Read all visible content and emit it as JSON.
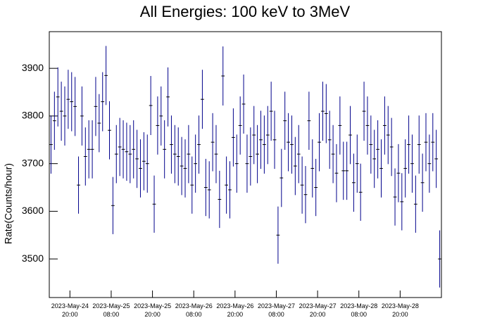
{
  "chart_data": {
    "type": "errorbar",
    "title": "All Energies:  100 keV to 3MeV",
    "y_label": "Rate(Counts/hour)",
    "xlim": [
      "2023-05-24T14:00",
      "2023-05-29T08:00"
    ],
    "xticks": [
      {
        "value": "2023-05-24T20:00",
        "label": "2023-May-24\n20:00"
      },
      {
        "value": "2023-05-25T08:00",
        "label": "2023-May-25\n08:00"
      },
      {
        "value": "2023-05-25T20:00",
        "label": "2023-May-25\n20:00"
      },
      {
        "value": "2023-05-26T08:00",
        "label": "2023-May-26\n08:00"
      },
      {
        "value": "2023-05-26T20:00",
        "label": "2023-May-26\n20:00"
      },
      {
        "value": "2023-05-27T08:00",
        "label": "2023-May-27\n08:00"
      },
      {
        "value": "2023-05-27T20:00",
        "label": "2023-May-27\n20:00"
      },
      {
        "value": "2023-05-28T08:00",
        "label": "2023-May-28\n08:00"
      },
      {
        "value": "2023-05-28T20:00",
        "label": "2023-May-28\n20:00"
      }
    ],
    "ylim": [
      3419,
      3977
    ],
    "yticks": [
      3500,
      3600,
      3700,
      3800,
      3900
    ],
    "x": [
      "2023-05-24T14:30",
      "2023-05-24T15:30",
      "2023-05-24T16:30",
      "2023-05-24T17:30",
      "2023-05-24T18:30",
      "2023-05-24T19:30",
      "2023-05-24T20:30",
      "2023-05-24T21:30",
      "2023-05-24T22:30",
      "2023-05-24T23:30",
      "2023-05-25T00:30",
      "2023-05-25T01:30",
      "2023-05-25T02:30",
      "2023-05-25T03:30",
      "2023-05-25T04:30",
      "2023-05-25T05:30",
      "2023-05-25T06:30",
      "2023-05-25T07:30",
      "2023-05-25T08:30",
      "2023-05-25T09:30",
      "2023-05-25T10:30",
      "2023-05-25T11:30",
      "2023-05-25T12:30",
      "2023-05-25T13:30",
      "2023-05-25T14:30",
      "2023-05-25T15:30",
      "2023-05-25T16:30",
      "2023-05-25T17:30",
      "2023-05-25T18:30",
      "2023-05-25T19:30",
      "2023-05-25T20:30",
      "2023-05-25T21:30",
      "2023-05-25T22:30",
      "2023-05-25T23:30",
      "2023-05-26T00:30",
      "2023-05-26T01:30",
      "2023-05-26T02:30",
      "2023-05-26T03:30",
      "2023-05-26T04:30",
      "2023-05-26T05:30",
      "2023-05-26T06:30",
      "2023-05-26T07:30",
      "2023-05-26T08:30",
      "2023-05-26T09:30",
      "2023-05-26T10:30",
      "2023-05-26T11:30",
      "2023-05-26T12:30",
      "2023-05-26T13:30",
      "2023-05-26T14:30",
      "2023-05-26T15:30",
      "2023-05-26T16:30",
      "2023-05-26T17:30",
      "2023-05-26T18:30",
      "2023-05-26T19:30",
      "2023-05-26T20:30",
      "2023-05-26T21:30",
      "2023-05-26T22:30",
      "2023-05-26T23:30",
      "2023-05-27T00:30",
      "2023-05-27T01:30",
      "2023-05-27T02:30",
      "2023-05-27T03:30",
      "2023-05-27T04:30",
      "2023-05-27T05:30",
      "2023-05-27T06:30",
      "2023-05-27T07:30",
      "2023-05-27T08:30",
      "2023-05-27T09:30",
      "2023-05-27T10:30",
      "2023-05-27T11:30",
      "2023-05-27T12:30",
      "2023-05-27T13:30",
      "2023-05-27T14:30",
      "2023-05-27T15:30",
      "2023-05-27T16:30",
      "2023-05-27T17:30",
      "2023-05-27T18:30",
      "2023-05-27T19:30",
      "2023-05-27T20:30",
      "2023-05-27T21:30",
      "2023-05-27T22:30",
      "2023-05-27T23:30",
      "2023-05-28T00:30",
      "2023-05-28T01:30",
      "2023-05-28T02:30",
      "2023-05-28T03:30",
      "2023-05-28T04:30",
      "2023-05-28T05:30",
      "2023-05-28T06:30",
      "2023-05-28T07:30",
      "2023-05-28T08:30",
      "2023-05-28T09:30",
      "2023-05-28T10:30",
      "2023-05-28T11:30",
      "2023-05-28T12:30",
      "2023-05-28T13:30",
      "2023-05-28T14:30",
      "2023-05-28T15:30",
      "2023-05-28T16:30",
      "2023-05-28T17:30",
      "2023-05-28T18:30",
      "2023-05-28T19:30",
      "2023-05-28T20:30",
      "2023-05-28T21:30",
      "2023-05-28T22:30",
      "2023-05-28T23:30",
      "2023-05-29T00:30",
      "2023-05-29T01:30",
      "2023-05-29T02:30",
      "2023-05-29T03:30",
      "2023-05-29T04:30",
      "2023-05-29T05:30",
      "2023-05-29T06:30",
      "2023-05-29T07:30"
    ],
    "series": [
      {
        "color": "#00008b",
        "values": [
          3740,
          3790,
          3840,
          3810,
          3800,
          3835,
          3830,
          3820,
          3655,
          3800,
          3715,
          3730,
          3730,
          3820,
          3785,
          3830,
          3885,
          3770,
          3612,
          3720,
          3735,
          3730,
          3725,
          3720,
          3730,
          3710,
          3690,
          3705,
          3700,
          3822,
          3615,
          3780,
          3800,
          3730,
          3840,
          3740,
          3720,
          3715,
          3695,
          3690,
          3720,
          3655,
          3700,
          3740,
          3835,
          3650,
          3645,
          3745,
          3720,
          3625,
          3884,
          3655,
          3645,
          3755,
          3700,
          3780,
          3825,
          3700,
          3715,
          3760,
          3720,
          3750,
          3740,
          3760,
          3810,
          3750,
          3550,
          3670,
          3790,
          3745,
          3740,
          3695,
          3720,
          3655,
          3635,
          3790,
          3690,
          3650,
          3745,
          3810,
          3805,
          3750,
          3720,
          3680,
          3780,
          3685,
          3685,
          3760,
          3660,
          3700,
          3640,
          3810,
          3780,
          3740,
          3710,
          3730,
          3690,
          3780,
          3760,
          3735,
          3630,
          3680,
          3620,
          3690,
          3740,
          3700,
          3615,
          3740,
          3660,
          3745,
          3700,
          3745,
          3710,
          3500
        ],
        "errors": [
          61,
          61,
          62,
          62,
          62,
          62,
          62,
          62,
          60,
          62,
          61,
          61,
          61,
          62,
          61,
          62,
          62,
          61,
          60,
          61,
          61,
          61,
          61,
          61,
          61,
          61,
          61,
          61,
          61,
          62,
          60,
          61,
          62,
          61,
          62,
          61,
          61,
          61,
          61,
          61,
          61,
          60,
          61,
          61,
          62,
          60,
          60,
          61,
          61,
          60,
          62,
          60,
          60,
          61,
          61,
          61,
          62,
          61,
          61,
          61,
          61,
          61,
          61,
          61,
          62,
          61,
          60,
          61,
          61,
          61,
          61,
          61,
          61,
          60,
          60,
          61,
          61,
          60,
          61,
          62,
          62,
          61,
          61,
          61,
          61,
          61,
          61,
          61,
          61,
          61,
          60,
          62,
          61,
          61,
          61,
          61,
          61,
          61,
          61,
          61,
          60,
          61,
          60,
          61,
          61,
          61,
          60,
          61,
          61,
          61,
          61,
          61,
          61,
          60
        ]
      }
    ]
  }
}
